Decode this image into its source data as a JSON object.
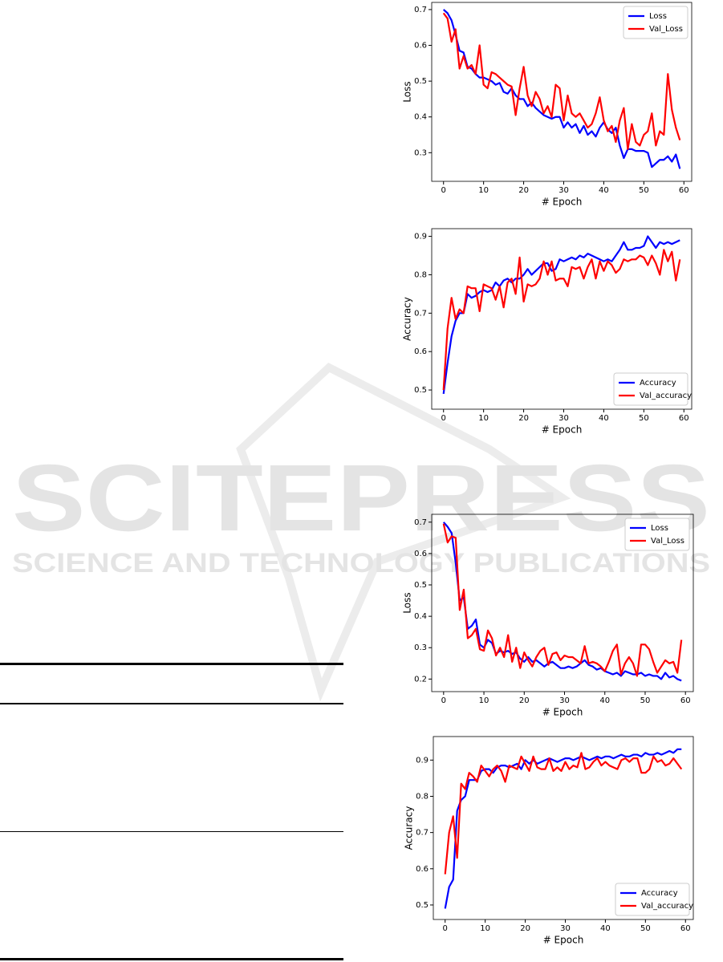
{
  "chart_data": [
    {
      "type": "line",
      "xlabel": "# Epoch",
      "ylabel": "Loss",
      "legend": "upper right",
      "xlim": [
        -2.95,
        61.95
      ],
      "xticks": [
        0,
        10,
        20,
        30,
        40,
        50,
        60
      ],
      "ylim": [
        0.22,
        0.72
      ],
      "yticks": [
        0.3,
        0.4,
        0.5,
        0.6,
        0.7
      ],
      "x": [
        0,
        1,
        2,
        3,
        4,
        5,
        6,
        7,
        8,
        9,
        10,
        11,
        12,
        13,
        14,
        15,
        16,
        17,
        18,
        19,
        20,
        21,
        22,
        23,
        24,
        25,
        26,
        27,
        28,
        29,
        30,
        31,
        32,
        33,
        34,
        35,
        36,
        37,
        38,
        39,
        40,
        41,
        42,
        43,
        44,
        45,
        46,
        47,
        48,
        49,
        50,
        51,
        52,
        53,
        54,
        55,
        56,
        57,
        58,
        59
      ],
      "series": [
        {
          "name": "Loss",
          "color": "#0000ff",
          "values": [
            0.7,
            0.69,
            0.67,
            0.63,
            0.585,
            0.58,
            0.54,
            0.535,
            0.52,
            0.51,
            0.51,
            0.505,
            0.5,
            0.49,
            0.495,
            0.47,
            0.465,
            0.48,
            0.46,
            0.45,
            0.45,
            0.43,
            0.44,
            0.425,
            0.415,
            0.405,
            0.4,
            0.395,
            0.4,
            0.4,
            0.37,
            0.385,
            0.37,
            0.38,
            0.355,
            0.375,
            0.35,
            0.36,
            0.345,
            0.37,
            0.385,
            0.365,
            0.355,
            0.37,
            0.32,
            0.285,
            0.31,
            0.31,
            0.305,
            0.305,
            0.305,
            0.3,
            0.26,
            0.27,
            0.28,
            0.28,
            0.29,
            0.275,
            0.295,
            0.255
          ]
        },
        {
          "name": "Val_Loss",
          "color": "#ff0000",
          "values": [
            0.69,
            0.675,
            0.61,
            0.645,
            0.535,
            0.57,
            0.535,
            0.545,
            0.52,
            0.6,
            0.49,
            0.48,
            0.525,
            0.52,
            0.51,
            0.5,
            0.49,
            0.485,
            0.405,
            0.48,
            0.54,
            0.46,
            0.43,
            0.47,
            0.45,
            0.41,
            0.43,
            0.4,
            0.49,
            0.48,
            0.39,
            0.46,
            0.41,
            0.4,
            0.41,
            0.39,
            0.37,
            0.38,
            0.41,
            0.455,
            0.39,
            0.36,
            0.375,
            0.33,
            0.39,
            0.425,
            0.31,
            0.38,
            0.33,
            0.32,
            0.35,
            0.36,
            0.41,
            0.32,
            0.36,
            0.35,
            0.52,
            0.42,
            0.37,
            0.335
          ]
        }
      ]
    },
    {
      "type": "line",
      "xlabel": "# Epoch",
      "ylabel": "Accuracy",
      "legend": "lower right",
      "xlim": [
        -2.95,
        61.95
      ],
      "xticks": [
        0,
        10,
        20,
        30,
        40,
        50,
        60
      ],
      "ylim": [
        0.45,
        0.92
      ],
      "yticks": [
        0.5,
        0.6,
        0.7,
        0.8,
        0.9
      ],
      "x": [
        0,
        1,
        2,
        3,
        4,
        5,
        6,
        7,
        8,
        9,
        10,
        11,
        12,
        13,
        14,
        15,
        16,
        17,
        18,
        19,
        20,
        21,
        22,
        23,
        24,
        25,
        26,
        27,
        28,
        29,
        30,
        31,
        32,
        33,
        34,
        35,
        36,
        37,
        38,
        39,
        40,
        41,
        42,
        43,
        44,
        45,
        46,
        47,
        48,
        49,
        50,
        51,
        52,
        53,
        54,
        55,
        56,
        57,
        58,
        59
      ],
      "series": [
        {
          "name": "Accuracy",
          "color": "#0000ff",
          "values": [
            0.49,
            0.57,
            0.64,
            0.68,
            0.7,
            0.7,
            0.75,
            0.74,
            0.745,
            0.755,
            0.76,
            0.755,
            0.76,
            0.78,
            0.77,
            0.785,
            0.79,
            0.78,
            0.79,
            0.79,
            0.8,
            0.815,
            0.8,
            0.81,
            0.82,
            0.83,
            0.83,
            0.81,
            0.815,
            0.84,
            0.835,
            0.84,
            0.845,
            0.84,
            0.85,
            0.845,
            0.855,
            0.85,
            0.845,
            0.84,
            0.835,
            0.84,
            0.835,
            0.85,
            0.865,
            0.885,
            0.865,
            0.865,
            0.87,
            0.87,
            0.875,
            0.9,
            0.885,
            0.87,
            0.885,
            0.88,
            0.885,
            0.88,
            0.885,
            0.89
          ]
        },
        {
          "name": "Val_accuracy",
          "color": "#ff0000",
          "values": [
            0.5,
            0.66,
            0.74,
            0.685,
            0.71,
            0.7,
            0.77,
            0.765,
            0.765,
            0.705,
            0.775,
            0.77,
            0.765,
            0.735,
            0.77,
            0.715,
            0.78,
            0.79,
            0.75,
            0.845,
            0.73,
            0.775,
            0.77,
            0.775,
            0.79,
            0.835,
            0.8,
            0.835,
            0.785,
            0.79,
            0.79,
            0.77,
            0.82,
            0.815,
            0.82,
            0.79,
            0.82,
            0.84,
            0.79,
            0.835,
            0.81,
            0.835,
            0.825,
            0.805,
            0.815,
            0.84,
            0.835,
            0.84,
            0.84,
            0.85,
            0.845,
            0.825,
            0.85,
            0.83,
            0.8,
            0.865,
            0.835,
            0.86,
            0.785,
            0.84
          ]
        }
      ]
    },
    {
      "type": "line",
      "xlabel": "# Epoch",
      "ylabel": "Loss",
      "legend": "upper right",
      "xlim": [
        -2.95,
        61.95
      ],
      "xticks": [
        0,
        10,
        20,
        30,
        40,
        50,
        60
      ],
      "ylim": [
        0.16,
        0.725
      ],
      "yticks": [
        0.2,
        0.3,
        0.4,
        0.5,
        0.6,
        0.7
      ],
      "x": [
        0,
        1,
        2,
        3,
        4,
        5,
        6,
        7,
        8,
        9,
        10,
        11,
        12,
        13,
        14,
        15,
        16,
        17,
        18,
        19,
        20,
        21,
        22,
        23,
        24,
        25,
        26,
        27,
        28,
        29,
        30,
        31,
        32,
        33,
        34,
        35,
        36,
        37,
        38,
        39,
        40,
        41,
        42,
        43,
        44,
        45,
        46,
        47,
        48,
        49,
        50,
        51,
        52,
        53,
        54,
        55,
        56,
        57,
        58,
        59
      ],
      "series": [
        {
          "name": "Loss",
          "color": "#0000ff",
          "values": [
            0.7,
            0.685,
            0.665,
            0.57,
            0.45,
            0.46,
            0.36,
            0.37,
            0.39,
            0.31,
            0.3,
            0.325,
            0.315,
            0.28,
            0.29,
            0.285,
            0.29,
            0.28,
            0.285,
            0.265,
            0.255,
            0.27,
            0.255,
            0.26,
            0.25,
            0.24,
            0.25,
            0.255,
            0.245,
            0.235,
            0.235,
            0.24,
            0.235,
            0.24,
            0.25,
            0.26,
            0.245,
            0.24,
            0.23,
            0.235,
            0.225,
            0.22,
            0.215,
            0.22,
            0.21,
            0.225,
            0.22,
            0.215,
            0.215,
            0.22,
            0.21,
            0.215,
            0.21,
            0.21,
            0.2,
            0.22,
            0.205,
            0.21,
            0.2,
            0.195
          ]
        },
        {
          "name": "Val_Loss",
          "color": "#ff0000",
          "values": [
            0.695,
            0.635,
            0.655,
            0.65,
            0.42,
            0.485,
            0.33,
            0.34,
            0.36,
            0.295,
            0.29,
            0.355,
            0.33,
            0.275,
            0.3,
            0.27,
            0.34,
            0.255,
            0.3,
            0.235,
            0.285,
            0.26,
            0.24,
            0.27,
            0.29,
            0.3,
            0.245,
            0.28,
            0.285,
            0.26,
            0.275,
            0.27,
            0.27,
            0.26,
            0.25,
            0.305,
            0.25,
            0.255,
            0.25,
            0.24,
            0.225,
            0.255,
            0.29,
            0.31,
            0.215,
            0.25,
            0.27,
            0.25,
            0.21,
            0.31,
            0.31,
            0.295,
            0.255,
            0.22,
            0.24,
            0.26,
            0.25,
            0.255,
            0.22,
            0.325
          ]
        }
      ]
    },
    {
      "type": "line",
      "xlabel": "# Epoch",
      "ylabel": "Accuracy",
      "legend": "lower right",
      "xlim": [
        -2.95,
        61.95
      ],
      "xticks": [
        0,
        10,
        20,
        30,
        40,
        50,
        60
      ],
      "ylim": [
        0.46,
        0.965
      ],
      "yticks": [
        0.5,
        0.6,
        0.7,
        0.8,
        0.9
      ],
      "x": [
        0,
        1,
        2,
        3,
        4,
        5,
        6,
        7,
        8,
        9,
        10,
        11,
        12,
        13,
        14,
        15,
        16,
        17,
        18,
        19,
        20,
        21,
        22,
        23,
        24,
        25,
        26,
        27,
        28,
        29,
        30,
        31,
        32,
        33,
        34,
        35,
        36,
        37,
        38,
        39,
        40,
        41,
        42,
        43,
        44,
        45,
        46,
        47,
        48,
        49,
        50,
        51,
        52,
        53,
        54,
        55,
        56,
        57,
        58,
        59
      ],
      "series": [
        {
          "name": "Accuracy",
          "color": "#0000ff",
          "values": [
            0.49,
            0.55,
            0.57,
            0.76,
            0.79,
            0.8,
            0.845,
            0.845,
            0.845,
            0.87,
            0.875,
            0.875,
            0.865,
            0.88,
            0.885,
            0.885,
            0.88,
            0.885,
            0.89,
            0.875,
            0.9,
            0.89,
            0.9,
            0.89,
            0.895,
            0.9,
            0.905,
            0.9,
            0.895,
            0.9,
            0.905,
            0.905,
            0.9,
            0.905,
            0.91,
            0.905,
            0.9,
            0.905,
            0.91,
            0.905,
            0.91,
            0.91,
            0.905,
            0.91,
            0.915,
            0.91,
            0.91,
            0.915,
            0.915,
            0.91,
            0.92,
            0.915,
            0.915,
            0.92,
            0.915,
            0.92,
            0.925,
            0.92,
            0.93,
            0.93
          ]
        },
        {
          "name": "Val_accuracy",
          "color": "#ff0000",
          "values": [
            0.585,
            0.7,
            0.745,
            0.63,
            0.835,
            0.82,
            0.865,
            0.855,
            0.84,
            0.885,
            0.87,
            0.855,
            0.875,
            0.885,
            0.87,
            0.84,
            0.885,
            0.88,
            0.875,
            0.91,
            0.89,
            0.87,
            0.91,
            0.88,
            0.875,
            0.875,
            0.905,
            0.87,
            0.88,
            0.87,
            0.895,
            0.875,
            0.885,
            0.88,
            0.92,
            0.875,
            0.88,
            0.895,
            0.905,
            0.885,
            0.895,
            0.885,
            0.88,
            0.875,
            0.9,
            0.905,
            0.895,
            0.905,
            0.905,
            0.865,
            0.865,
            0.875,
            0.91,
            0.895,
            0.9,
            0.885,
            0.89,
            0.905,
            0.89,
            0.875
          ]
        }
      ]
    }
  ],
  "watermark": {
    "title": "SCITEPRESS",
    "subtitle": "SCIENCE AND TECHNOLOGY PUBLICATIONS"
  }
}
